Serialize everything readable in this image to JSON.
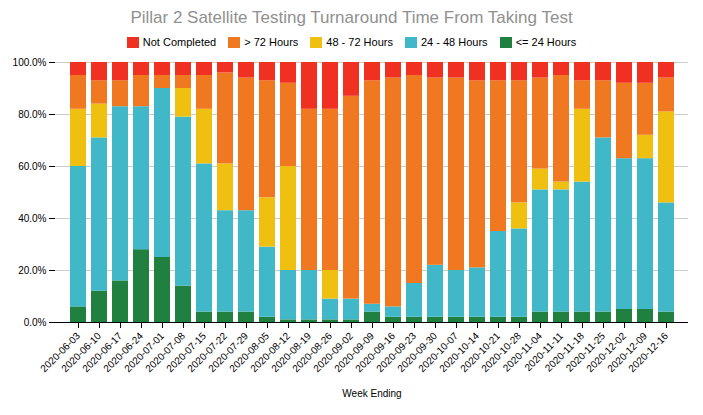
{
  "chart_data": {
    "type": "bar",
    "stacked": true,
    "title": "Pillar 2 Satellite Testing Turnaround Time From Taking Test",
    "xlabel": "Week Ending",
    "categories": [
      "2020-06-03",
      "2020-06-10",
      "2020-06-17",
      "2020-06-24",
      "2020-07-01",
      "2020-07-08",
      "2020-07-15",
      "2020-07-22",
      "2020-07-29",
      "2020-08-05",
      "2020-08-12",
      "2020-08-19",
      "2020-08-26",
      "2020-09-02",
      "2020-09-09",
      "2020-09-16",
      "2020-09-23",
      "2020-09-30",
      "2020-10-07",
      "2020-10-14",
      "2020-10-21",
      "2020-10-28",
      "2020-11-04",
      "2020-11-11",
      "2020-11-18",
      "2020-11-25",
      "2020-12-02",
      "2020-12-09",
      "2020-12-16"
    ],
    "series": [
      {
        "name": "<= 24 Hours",
        "color": "#208040",
        "values": [
          6,
          12,
          16,
          28,
          25,
          14,
          4,
          4,
          4,
          2,
          1,
          1,
          1,
          1,
          4,
          2,
          2,
          2,
          2,
          2,
          2,
          2,
          4,
          4,
          4,
          4,
          5,
          5,
          4
        ]
      },
      {
        "name": "24 - 48 Hours",
        "color": "#40b8c8",
        "values": [
          54,
          59,
          67,
          55,
          65,
          65,
          57,
          39,
          39,
          27,
          19,
          19,
          8,
          8,
          3,
          4,
          13,
          20,
          18,
          19,
          33,
          34,
          47,
          47,
          50,
          67,
          58,
          58,
          42
        ]
      },
      {
        "name": "48 - 72 Hours",
        "color": "#f0c010",
        "values": [
          22,
          13,
          0,
          0,
          0,
          11,
          21,
          18,
          0,
          19,
          40,
          0,
          11,
          0,
          0,
          0,
          0,
          0,
          0,
          0,
          0,
          10,
          8,
          3,
          28,
          0,
          0,
          9,
          35
        ]
      },
      {
        "name": "> 72 Hours",
        "color": "#f07820",
        "values": [
          13,
          9,
          10,
          12,
          5,
          5,
          13,
          35,
          51,
          45,
          32,
          62,
          62,
          78,
          86,
          88,
          80,
          72,
          74,
          72,
          58,
          47,
          35,
          41,
          11,
          22,
          29,
          20,
          13
        ]
      },
      {
        "name": "Not Completed",
        "color": "#f03020",
        "values": [
          5,
          7,
          7,
          5,
          5,
          5,
          5,
          4,
          6,
          7,
          8,
          18,
          18,
          13,
          7,
          6,
          5,
          6,
          6,
          7,
          7,
          7,
          6,
          5,
          7,
          7,
          8,
          8,
          6
        ]
      }
    ],
    "ylim": [
      0,
      100
    ],
    "yticks": [
      {
        "value": 0,
        "label": "0.0%"
      },
      {
        "value": 20,
        "label": "20.0%"
      },
      {
        "value": 40,
        "label": "40.0%"
      },
      {
        "value": 60,
        "label": "60.0%"
      },
      {
        "value": 80,
        "label": "80.0%"
      },
      {
        "value": 100,
        "label": "100.0%"
      }
    ],
    "grid": true,
    "legend": "top"
  }
}
